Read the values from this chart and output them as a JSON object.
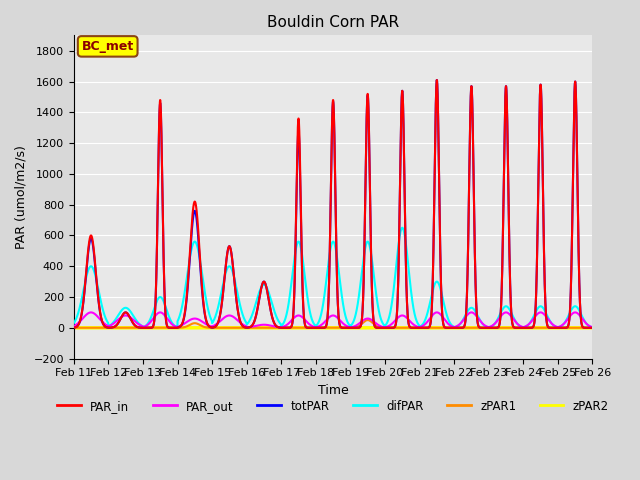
{
  "title": "Bouldin Corn PAR",
  "xlabel": "Time",
  "ylabel": "PAR (umol/m2/s)",
  "ylim": [
    -200,
    1900
  ],
  "yticks": [
    -200,
    0,
    200,
    400,
    600,
    800,
    1000,
    1200,
    1400,
    1600,
    1800
  ],
  "xtick_labels": [
    "Feb 11",
    "Feb 12",
    "Feb 13",
    "Feb 14",
    "Feb 15",
    "Feb 16",
    "Feb 17",
    "Feb 18",
    "Feb 19",
    "Feb 20",
    "Feb 21",
    "Feb 22",
    "Feb 23",
    "Feb 24",
    "Feb 25",
    "Feb 26"
  ],
  "colors": {
    "PAR_in": "#ff0000",
    "PAR_out": "#ff00ff",
    "totPAR": "#0000ff",
    "difPAR": "#00ffff",
    "zPAR1": "#ff8c00",
    "zPAR2": "#ffff00"
  },
  "background_color": "#e8e8e8",
  "grid_color": "#ffffff",
  "annotation_box": {
    "text": "BC_met",
    "facecolor": "#ffff00",
    "edgecolor": "#8b4513",
    "textcolor": "#8b0000"
  },
  "n_days": 15,
  "steps_per_day": 288,
  "day_peaks": {
    "0": {
      "PAR_in": 600,
      "PAR_out": 100,
      "totPAR": 580,
      "difPAR": 400,
      "zPAR1": 0,
      "sharp": false
    },
    "1": {
      "PAR_in": 100,
      "PAR_out": 80,
      "totPAR": 100,
      "difPAR": 130,
      "zPAR1": 0,
      "sharp": false
    },
    "2": {
      "PAR_in": 1480,
      "PAR_out": 100,
      "totPAR": 1460,
      "difPAR": 200,
      "zPAR1": 0,
      "sharp": true
    },
    "3": {
      "PAR_in": 820,
      "PAR_out": 60,
      "totPAR": 760,
      "difPAR": 560,
      "zPAR1": 30,
      "sharp": false
    },
    "4": {
      "PAR_in": 530,
      "PAR_out": 80,
      "totPAR": 530,
      "difPAR": 400,
      "zPAR1": 0,
      "sharp": false
    },
    "5": {
      "PAR_in": 300,
      "PAR_out": 20,
      "totPAR": 300,
      "difPAR": 280,
      "zPAR1": 0,
      "sharp": false
    },
    "6": {
      "PAR_in": 1360,
      "PAR_out": 80,
      "totPAR": 1280,
      "difPAR": 560,
      "zPAR1": 0,
      "sharp": true
    },
    "7": {
      "PAR_in": 1480,
      "PAR_out": 80,
      "totPAR": 1470,
      "difPAR": 560,
      "zPAR1": 0,
      "sharp": true
    },
    "8": {
      "PAR_in": 1520,
      "PAR_out": 60,
      "totPAR": 1510,
      "difPAR": 560,
      "zPAR1": 50,
      "sharp": true
    },
    "9": {
      "PAR_in": 1540,
      "PAR_out": 80,
      "totPAR": 1540,
      "difPAR": 650,
      "zPAR1": 0,
      "sharp": true
    },
    "10": {
      "PAR_in": 1610,
      "PAR_out": 100,
      "totPAR": 1610,
      "difPAR": 300,
      "zPAR1": 0,
      "sharp": true
    },
    "11": {
      "PAR_in": 1570,
      "PAR_out": 100,
      "totPAR": 1570,
      "difPAR": 130,
      "zPAR1": 0,
      "sharp": true
    },
    "12": {
      "PAR_in": 1570,
      "PAR_out": 100,
      "totPAR": 1570,
      "difPAR": 140,
      "zPAR1": 0,
      "sharp": true
    },
    "13": {
      "PAR_in": 1580,
      "PAR_out": 100,
      "totPAR": 1580,
      "difPAR": 140,
      "zPAR1": 0,
      "sharp": true
    },
    "14": {
      "PAR_in": 1600,
      "PAR_out": 100,
      "totPAR": 1600,
      "difPAR": 140,
      "zPAR1": 0,
      "sharp": true
    }
  }
}
